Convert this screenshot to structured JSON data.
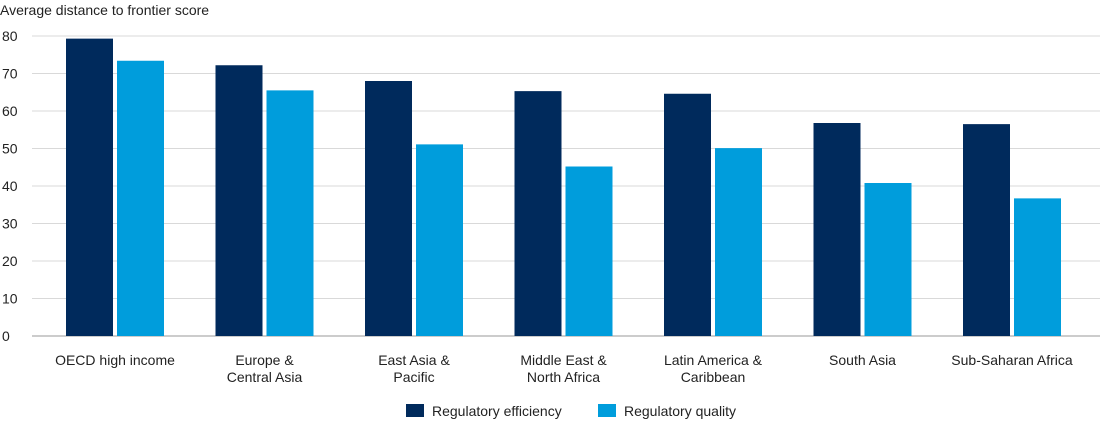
{
  "chart_data": {
    "type": "bar",
    "ylabel": "Average distance to frontier score",
    "xlabel": "",
    "ylim": [
      0,
      80
    ],
    "yticks": [
      0,
      10,
      20,
      30,
      40,
      50,
      60,
      70,
      80
    ],
    "grid": true,
    "legend_position": "bottom-center",
    "categories": [
      [
        "OECD high income"
      ],
      [
        "Europe &",
        "Central Asia"
      ],
      [
        "East Asia &",
        "Pacific"
      ],
      [
        "Middle East &",
        "North Africa"
      ],
      [
        "Latin America &",
        "Caribbean"
      ],
      [
        "South Asia"
      ],
      [
        "Sub-Saharan Africa"
      ]
    ],
    "series": [
      {
        "name": "Regulatory efficiency",
        "color": "#002a5c",
        "values": [
          79.3,
          72.2,
          68.0,
          65.3,
          64.6,
          56.8,
          56.5
        ]
      },
      {
        "name": "Regulatory quality",
        "color": "#009ddc",
        "values": [
          73.4,
          65.5,
          51.1,
          45.2,
          50.1,
          40.8,
          36.7
        ]
      }
    ]
  }
}
